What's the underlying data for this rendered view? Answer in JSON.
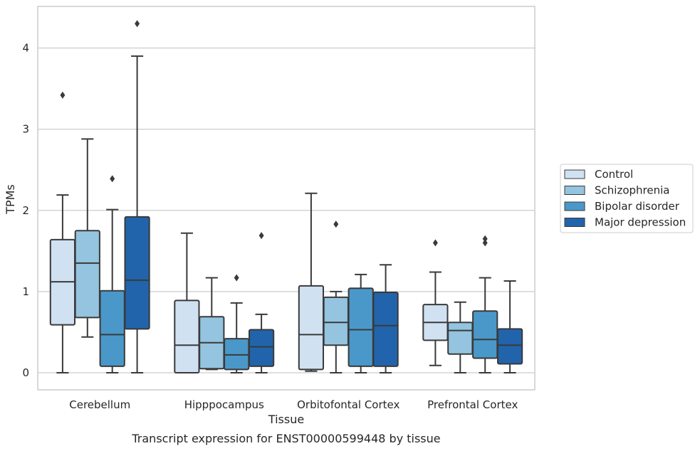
{
  "caption": "Transcript expression for ENST00000599448 by tissue",
  "chart_data": {
    "type": "box",
    "xlabel": "Tissue",
    "ylabel": "TPMs",
    "ylim": [
      -0.2,
      4.5
    ],
    "yticks": [
      0,
      1,
      2,
      3,
      4
    ],
    "grid": "horizontal",
    "legend_position": "right",
    "categories": [
      "Cerebellum",
      "Hipppocampus",
      "Orbitofontal Cortex",
      "Prefrontal Cortex"
    ],
    "series": [
      {
        "name": "Control",
        "color": "#d0e1f2",
        "boxes": [
          {
            "whislo": 0.0,
            "q1": 0.59,
            "med": 1.12,
            "q3": 1.64,
            "whishi": 2.19,
            "fliers": [
              3.42
            ]
          },
          {
            "whislo": 0.0,
            "q1": 0.0,
            "med": 0.34,
            "q3": 0.89,
            "whishi": 1.72,
            "fliers": []
          },
          {
            "whislo": 0.02,
            "q1": 0.04,
            "med": 0.47,
            "q3": 1.07,
            "whishi": 2.21,
            "fliers": []
          },
          {
            "whislo": 0.09,
            "q1": 0.4,
            "med": 0.62,
            "q3": 0.84,
            "whishi": 1.24,
            "fliers": [
              1.6
            ]
          }
        ]
      },
      {
        "name": "Schizophrenia",
        "color": "#94c4df",
        "boxes": [
          {
            "whislo": 0.44,
            "q1": 0.68,
            "med": 1.35,
            "q3": 1.75,
            "whishi": 2.88,
            "fliers": []
          },
          {
            "whislo": 0.04,
            "q1": 0.05,
            "med": 0.37,
            "q3": 0.69,
            "whishi": 1.17,
            "fliers": []
          },
          {
            "whislo": 0.0,
            "q1": 0.34,
            "med": 0.62,
            "q3": 0.93,
            "whishi": 1.0,
            "fliers": [
              1.83
            ]
          },
          {
            "whislo": 0.0,
            "q1": 0.23,
            "med": 0.52,
            "q3": 0.62,
            "whishi": 0.87,
            "fliers": []
          }
        ]
      },
      {
        "name": "Bipolar disorder",
        "color": "#4a98c9",
        "boxes": [
          {
            "whislo": 0.0,
            "q1": 0.08,
            "med": 0.47,
            "q3": 1.01,
            "whishi": 2.01,
            "fliers": [
              2.39
            ]
          },
          {
            "whislo": 0.0,
            "q1": 0.04,
            "med": 0.22,
            "q3": 0.42,
            "whishi": 0.86,
            "fliers": [
              1.17
            ]
          },
          {
            "whislo": 0.0,
            "q1": 0.08,
            "med": 0.53,
            "q3": 1.04,
            "whishi": 1.21,
            "fliers": []
          },
          {
            "whislo": 0.0,
            "q1": 0.18,
            "med": 0.41,
            "q3": 0.76,
            "whishi": 1.17,
            "fliers": [
              1.6,
              1.65
            ]
          }
        ]
      },
      {
        "name": "Major depression",
        "color": "#2164ab",
        "boxes": [
          {
            "whislo": 0.0,
            "q1": 0.54,
            "med": 1.14,
            "q3": 1.92,
            "whishi": 3.9,
            "fliers": [
              4.3
            ]
          },
          {
            "whislo": 0.0,
            "q1": 0.08,
            "med": 0.32,
            "q3": 0.53,
            "whishi": 0.72,
            "fliers": [
              1.69
            ]
          },
          {
            "whislo": 0.0,
            "q1": 0.08,
            "med": 0.58,
            "q3": 0.99,
            "whishi": 1.33,
            "fliers": []
          },
          {
            "whislo": 0.0,
            "q1": 0.11,
            "med": 0.34,
            "q3": 0.54,
            "whishi": 1.13,
            "fliers": []
          }
        ]
      }
    ]
  }
}
